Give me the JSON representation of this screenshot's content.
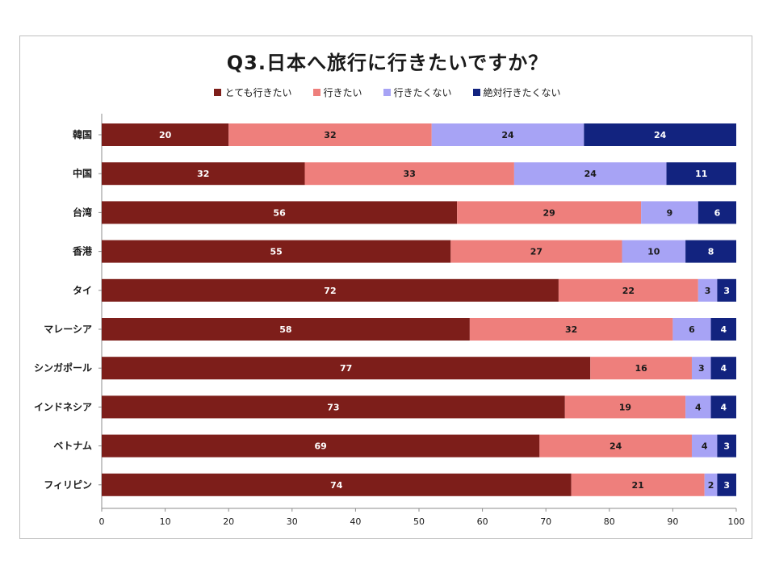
{
  "chart_data": {
    "type": "bar",
    "orientation": "horizontal",
    "stacked": true,
    "title": "Q3.日本へ旅行に行きたいですか？",
    "categories": [
      "韓国",
      "中国",
      "台湾",
      "香港",
      "タイ",
      "マレーシア",
      "シンガポール",
      "インドネシア",
      "ベトナム",
      "フィリピン"
    ],
    "series": [
      {
        "name": "とても行きたい",
        "color": "#7d1e1a",
        "label_color": "#ffffff",
        "values": [
          20,
          32,
          56,
          55,
          72,
          58,
          77,
          73,
          69,
          74
        ]
      },
      {
        "name": "行きたい",
        "color": "#ee7f7c",
        "label_color": "#1a1a1a",
        "values": [
          32,
          33,
          29,
          27,
          22,
          32,
          16,
          19,
          24,
          21
        ]
      },
      {
        "name": "行きたくない",
        "color": "#a7a3f5",
        "label_color": "#1a1a1a",
        "values": [
          24,
          24,
          9,
          10,
          3,
          6,
          3,
          4,
          4,
          2
        ]
      },
      {
        "name": "絶対行きたくない",
        "color": "#12237f",
        "label_color": "#ffffff",
        "values": [
          24,
          11,
          6,
          8,
          3,
          4,
          4,
          4,
          3,
          3
        ]
      }
    ],
    "xlim": [
      0,
      100
    ],
    "xticks": [
      0,
      10,
      20,
      30,
      40,
      50,
      60,
      70,
      80,
      90,
      100
    ],
    "legend_position": "top",
    "grid": false
  }
}
